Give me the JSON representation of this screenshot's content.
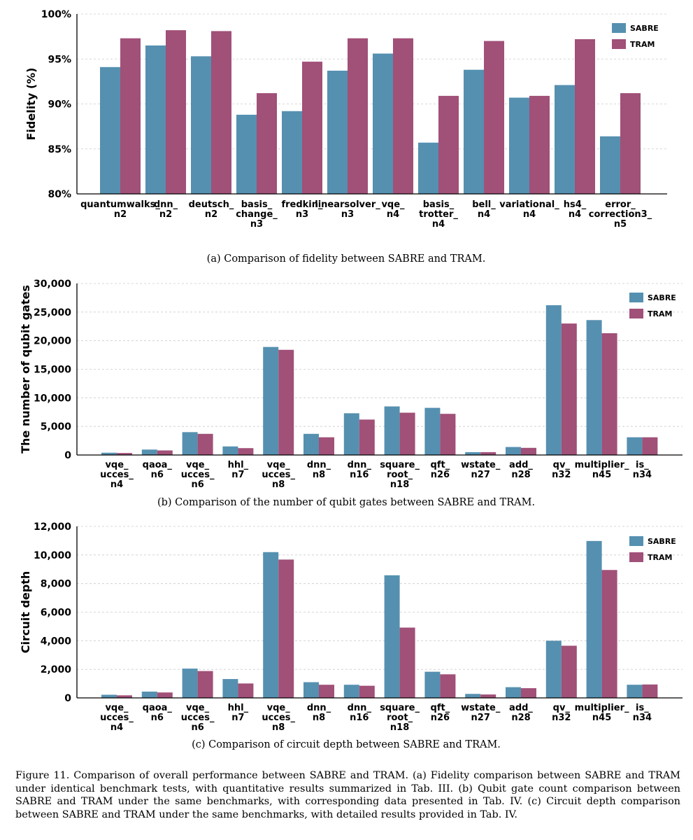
{
  "colors": {
    "sabre": "#5590b0",
    "tram": "#a15078",
    "grid": "#cccccc"
  },
  "legend": {
    "sabre": "SABRE",
    "tram": "TRAM"
  },
  "chart_data": [
    {
      "type": "bar",
      "ylabel": "Fidelity (%)",
      "ylim": [
        80,
        100
      ],
      "yticks": [
        80,
        85,
        90,
        95,
        100
      ],
      "ytick_labels": [
        "80%",
        "85%",
        "90%",
        "95%",
        "100%"
      ],
      "categories": [
        [
          "quantumwalks_",
          "n2"
        ],
        [
          "dnn_",
          "n2"
        ],
        [
          "deutsch_",
          "n2"
        ],
        [
          "basis_",
          "change_",
          "n3"
        ],
        [
          "fredkin_",
          "n3"
        ],
        [
          "linearsolver_",
          "n3"
        ],
        [
          "vqe_",
          "n4"
        ],
        [
          "basis_",
          "trotter_",
          "n4"
        ],
        [
          "bell_",
          "n4"
        ],
        [
          "variational_",
          "n4"
        ],
        [
          "hs4_",
          "n4"
        ],
        [
          "error_",
          "correction3_",
          "n5"
        ]
      ],
      "series": [
        {
          "name": "SABRE",
          "values": [
            94.1,
            96.5,
            95.3,
            88.8,
            89.2,
            93.7,
            95.6,
            85.7,
            93.8,
            90.7,
            92.1,
            86.4
          ]
        },
        {
          "name": "TRAM",
          "values": [
            97.3,
            98.2,
            98.1,
            91.2,
            94.7,
            97.3,
            97.3,
            90.9,
            97.0,
            90.9,
            97.2,
            91.2
          ]
        }
      ],
      "legend_position": "top-right",
      "caption": "(a) Comparison of fidelity between SABRE and TRAM."
    },
    {
      "type": "bar",
      "ylabel": "The number of qubit gates",
      "ylim": [
        0,
        30000
      ],
      "yticks": [
        0,
        5000,
        10000,
        15000,
        20000,
        25000,
        30000
      ],
      "ytick_labels": [
        "0",
        "5,000",
        "10,000",
        "15,000",
        "20,000",
        "25,000",
        "30,000"
      ],
      "categories": [
        [
          "vqe_",
          "ucces_",
          "n4"
        ],
        [
          "qaoa_",
          "n6"
        ],
        [
          "vqe_",
          "ucces_",
          "n6"
        ],
        [
          "hhl_",
          "n7"
        ],
        [
          "vqe_",
          "ucces_",
          "n8"
        ],
        [
          "dnn_",
          "n8"
        ],
        [
          "dnn_",
          "n16"
        ],
        [
          "square_",
          "root_",
          "n18"
        ],
        [
          "qft_",
          "n26"
        ],
        [
          "wstate_",
          "n27"
        ],
        [
          "add_",
          "n28"
        ],
        [
          "qv_",
          "n32"
        ],
        [
          "multiplier_",
          "n45"
        ],
        [
          "is_",
          "n34"
        ]
      ],
      "series": [
        {
          "name": "SABRE",
          "values": [
            400,
            950,
            4000,
            1500,
            18900,
            3700,
            7300,
            8500,
            8250,
            500,
            1400,
            26200,
            23600,
            3100
          ]
        },
        {
          "name": "TRAM",
          "values": [
            350,
            800,
            3700,
            1200,
            18400,
            3100,
            6200,
            7400,
            7200,
            500,
            1250,
            23000,
            21300,
            3100
          ]
        }
      ],
      "legend_position": "top-right",
      "caption": "(b) Comparison of the number of qubit gates between SABRE and TRAM."
    },
    {
      "type": "bar",
      "ylabel": "Circuit depth",
      "ylim": [
        0,
        12000
      ],
      "yticks": [
        0,
        2000,
        4000,
        6000,
        8000,
        10000,
        12000
      ],
      "ytick_labels": [
        "0",
        "2,000",
        "4,000",
        "6,000",
        "8,000",
        "10,000",
        "12,000"
      ],
      "categories": [
        [
          "vqe_",
          "ucces_",
          "n4"
        ],
        [
          "qaoa_",
          "n6"
        ],
        [
          "vqe_",
          "ucces_",
          "n6"
        ],
        [
          "hhl_",
          "n7"
        ],
        [
          "vqe_",
          "ucces_",
          "n8"
        ],
        [
          "dnn_",
          "n8"
        ],
        [
          "dnn_",
          "n16"
        ],
        [
          "square_",
          "root_",
          "n18"
        ],
        [
          "qft_",
          "n26"
        ],
        [
          "wstate_",
          "n27"
        ],
        [
          "add_",
          "n28"
        ],
        [
          "qv_",
          "n32"
        ],
        [
          "multiplier_",
          "n45"
        ],
        [
          "is_",
          "n34"
        ]
      ],
      "series": [
        {
          "name": "SABRE",
          "values": [
            220,
            440,
            2050,
            1320,
            10200,
            1100,
            920,
            8580,
            1830,
            280,
            750,
            4000,
            10980,
            920
          ]
        },
        {
          "name": "TRAM",
          "values": [
            180,
            380,
            1880,
            1010,
            9680,
            920,
            850,
            4920,
            1650,
            240,
            680,
            3650,
            8950,
            940
          ]
        }
      ],
      "legend_position": "top-right",
      "caption": "(c) Comparison of circuit depth between SABRE and TRAM."
    }
  ],
  "figure_caption": "Figure 11.    Comparison of overall performance between SABRE and TRAM. (a) Fidelity comparison between SABRE and TRAM under identical benchmark tests, with quantitative results summarized in Tab. III. (b) Qubit gate count comparison between SABRE and TRAM under the same benchmarks, with corresponding data presented in Tab. IV. (c) Circuit depth comparison between SABRE and TRAM under the same benchmarks, with detailed results provided in Tab. IV."
}
